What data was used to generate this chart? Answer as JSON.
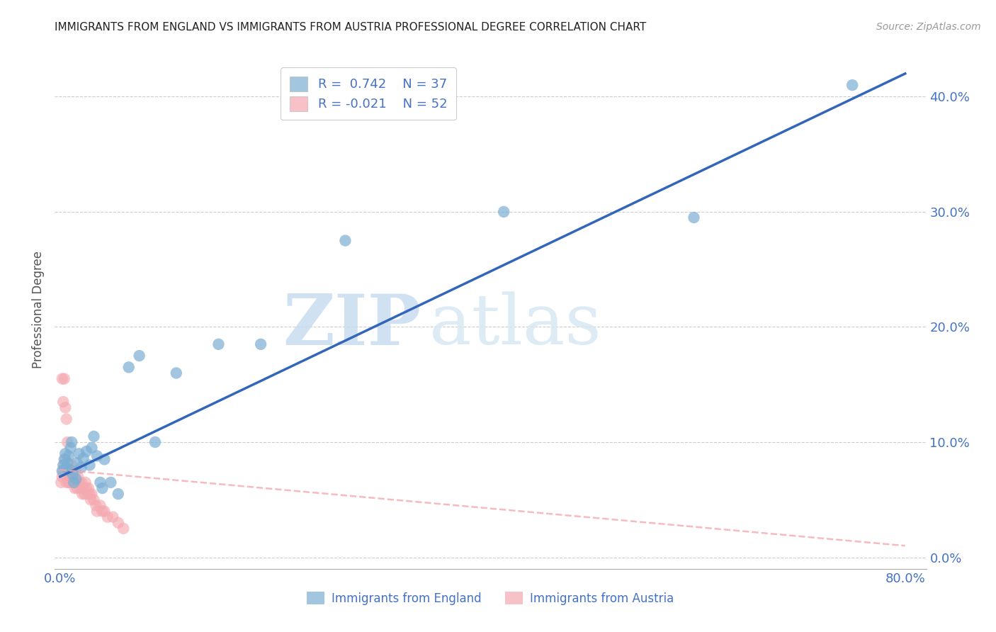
{
  "title": "IMMIGRANTS FROM ENGLAND VS IMMIGRANTS FROM AUSTRIA PROFESSIONAL DEGREE CORRELATION CHART",
  "source": "Source: ZipAtlas.com",
  "tick_color": "#4472C4",
  "ylabel": "Professional Degree",
  "xlim": [
    -0.005,
    0.82
  ],
  "ylim": [
    -0.01,
    0.44
  ],
  "xticks": [
    0.0,
    0.8
  ],
  "yticks": [
    0.0,
    0.1,
    0.2,
    0.3,
    0.4
  ],
  "xtick_labels": [
    "0.0%",
    "80.0%"
  ],
  "ytick_labels": [
    "0.0%",
    "10.0%",
    "20.0%",
    "30.0%",
    "40.0%"
  ],
  "england_R": 0.742,
  "england_N": 37,
  "austria_R": -0.021,
  "austria_N": 52,
  "england_color": "#7BAFD4",
  "austria_color": "#F4A9B0",
  "england_line_color": "#3366BB",
  "austria_line_color": "#F4A9B0",
  "watermark_zip": "ZIP",
  "watermark_atlas": "atlas",
  "england_line_x0": 0.0,
  "england_line_y0": 0.07,
  "england_line_x1": 0.8,
  "england_line_y1": 0.42,
  "austria_line_x0": 0.0,
  "austria_line_y0": 0.076,
  "austria_line_x1": 0.8,
  "austria_line_y1": 0.01,
  "england_scatter_x": [
    0.002,
    0.003,
    0.004,
    0.005,
    0.006,
    0.007,
    0.008,
    0.009,
    0.01,
    0.011,
    0.012,
    0.013,
    0.015,
    0.016,
    0.018,
    0.02,
    0.022,
    0.025,
    0.028,
    0.03,
    0.032,
    0.035,
    0.038,
    0.04,
    0.042,
    0.048,
    0.055,
    0.065,
    0.075,
    0.09,
    0.11,
    0.15,
    0.19,
    0.27,
    0.42,
    0.6,
    0.75
  ],
  "england_scatter_y": [
    0.075,
    0.08,
    0.085,
    0.09,
    0.078,
    0.082,
    0.088,
    0.076,
    0.095,
    0.1,
    0.072,
    0.065,
    0.068,
    0.082,
    0.09,
    0.078,
    0.086,
    0.092,
    0.08,
    0.095,
    0.105,
    0.088,
    0.065,
    0.06,
    0.085,
    0.065,
    0.055,
    0.165,
    0.175,
    0.1,
    0.16,
    0.185,
    0.185,
    0.275,
    0.3,
    0.295,
    0.41
  ],
  "austria_scatter_x": [
    0.001,
    0.002,
    0.002,
    0.003,
    0.003,
    0.004,
    0.004,
    0.005,
    0.005,
    0.006,
    0.006,
    0.007,
    0.007,
    0.008,
    0.008,
    0.009,
    0.009,
    0.01,
    0.01,
    0.011,
    0.011,
    0.012,
    0.012,
    0.013,
    0.014,
    0.015,
    0.015,
    0.016,
    0.017,
    0.018,
    0.019,
    0.02,
    0.021,
    0.022,
    0.023,
    0.024,
    0.025,
    0.026,
    0.027,
    0.028,
    0.029,
    0.03,
    0.032,
    0.034,
    0.035,
    0.038,
    0.04,
    0.042,
    0.045,
    0.05,
    0.055,
    0.06
  ],
  "austria_scatter_y": [
    0.065,
    0.07,
    0.155,
    0.075,
    0.135,
    0.08,
    0.155,
    0.085,
    0.13,
    0.065,
    0.12,
    0.07,
    0.1,
    0.075,
    0.065,
    0.065,
    0.075,
    0.07,
    0.065,
    0.075,
    0.08,
    0.065,
    0.07,
    0.065,
    0.06,
    0.075,
    0.065,
    0.06,
    0.07,
    0.065,
    0.06,
    0.065,
    0.055,
    0.06,
    0.055,
    0.065,
    0.06,
    0.055,
    0.06,
    0.055,
    0.05,
    0.055,
    0.05,
    0.045,
    0.04,
    0.045,
    0.04,
    0.04,
    0.035,
    0.035,
    0.03,
    0.025
  ]
}
